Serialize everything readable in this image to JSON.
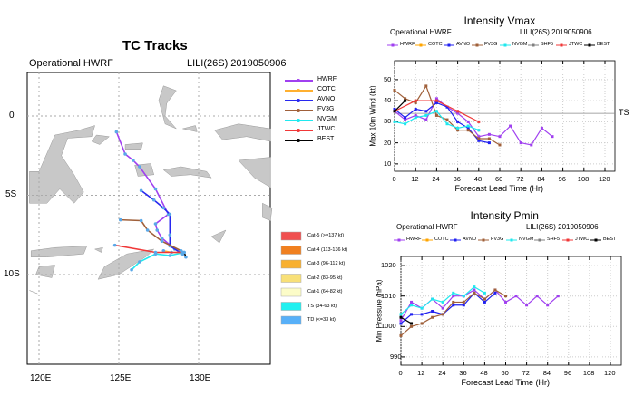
{
  "tracks_panel": {
    "title": "TC Tracks",
    "subtitle_left": "Operational HWRF",
    "subtitle_right": "LILI(26S) 2019050906",
    "lat_ticks": [
      "0",
      "5S",
      "10S"
    ],
    "lon_ticks": [
      "120E",
      "125E",
      "130E"
    ],
    "legend": [
      {
        "name": "HWRF",
        "color": "#a040f0"
      },
      {
        "name": "COTC",
        "color": "#ffb030"
      },
      {
        "name": "AVNO",
        "color": "#2828f0"
      },
      {
        "name": "FV3G",
        "color": "#a0603a"
      },
      {
        "name": "NVGM",
        "color": "#20e8ee"
      },
      {
        "name": "JTWC",
        "color": "#f03838"
      },
      {
        "name": "BEST",
        "color": "#000000"
      }
    ],
    "categories": [
      {
        "label": "Cat-5 (>=137 kt)",
        "color": "#f05050"
      },
      {
        "label": "Cat-4 (113-136 kt)",
        "color": "#f08020"
      },
      {
        "label": "Cat-3 (96-112 kt)",
        "color": "#f8b030"
      },
      {
        "label": "Cat-2 (83-95 kt)",
        "color": "#f8e078"
      },
      {
        "label": "Cat-1 (64-82 kt)",
        "color": "#fcfcc8"
      },
      {
        "label": "TS (34-63 kt)",
        "color": "#20f0f0"
      },
      {
        "label": "TD (<=33 kt)",
        "color": "#58b0f8"
      }
    ],
    "tracks": [
      {
        "name": "HWRF",
        "points": [
          [
            129.0,
            -8.7
          ],
          [
            128.5,
            -8.4
          ],
          [
            127.7,
            -7.7
          ],
          [
            127.4,
            -7.2
          ],
          [
            127.3,
            -6.8
          ],
          [
            128.1,
            -6.2
          ],
          [
            127.3,
            -4.6
          ],
          [
            126.3,
            -3.2
          ],
          [
            125.9,
            -2.8
          ],
          [
            125.4,
            -2.4
          ],
          [
            124.85,
            -1.0
          ]
        ]
      },
      {
        "name": "AVNO",
        "points": [
          [
            129.0,
            -8.7
          ],
          [
            128.2,
            -8.2
          ],
          [
            128.2,
            -7.5
          ],
          [
            128.2,
            -6.2
          ],
          [
            127.8,
            -5.8
          ],
          [
            127.2,
            -5.3
          ],
          [
            126.4,
            -4.7
          ]
        ]
      },
      {
        "name": "FV3G",
        "points": [
          [
            128.9,
            -8.5
          ],
          [
            127.7,
            -7.9
          ],
          [
            126.8,
            -7.2
          ],
          [
            126.4,
            -6.6
          ],
          [
            125.1,
            -6.55
          ]
        ]
      },
      {
        "name": "NVGM",
        "points": [
          [
            129.1,
            -8.6
          ],
          [
            128.2,
            -8.8
          ],
          [
            127.3,
            -8.7
          ],
          [
            126.3,
            -9.2
          ],
          [
            125.8,
            -9.7
          ]
        ]
      },
      {
        "name": "COTC",
        "points": [
          [
            129.0,
            -8.6
          ],
          [
            128.3,
            -8.6
          ],
          [
            127.8,
            -8.5
          ]
        ]
      },
      {
        "name": "JTWC",
        "points": [
          [
            129.0,
            -8.6
          ],
          [
            127.3,
            -8.6
          ],
          [
            124.75,
            -8.15
          ]
        ]
      },
      {
        "name": "BEST",
        "points": [
          [
            129.2,
            -8.9
          ],
          [
            129.1,
            -8.6
          ]
        ]
      }
    ]
  },
  "chart_data": [
    {
      "type": "line",
      "title": "Intensity Vmax",
      "subtitle_left": "Operational HWRF",
      "subtitle_right": "LILI(26S) 2019050906",
      "xlabel": "Forecast Lead Time (Hr)",
      "ylabel": "Max 10m Wind (kt)",
      "xlim": [
        0,
        124
      ],
      "ylim": [
        6.5,
        59
      ],
      "xticks": [
        0,
        12,
        24,
        36,
        48,
        60,
        72,
        84,
        96,
        108,
        120
      ],
      "yticks": [
        10,
        20,
        30,
        40,
        50
      ],
      "reference_line": {
        "value": 34,
        "label": "TS"
      },
      "grid": true,
      "legend": "top",
      "series": [
        {
          "name": "HWRF",
          "color": "#a040f0",
          "x": [
            0,
            6,
            12,
            18,
            24,
            30,
            36,
            42,
            48,
            54,
            60,
            66,
            72,
            78,
            84,
            90
          ],
          "y": [
            35,
            31,
            33,
            31,
            41,
            37,
            34,
            30,
            23,
            24,
            23,
            28,
            20,
            19,
            27,
            23
          ]
        },
        {
          "name": "COTC",
          "color": "#ffa500",
          "x": [],
          "y": []
        },
        {
          "name": "AVNO",
          "color": "#2020f0",
          "x": [
            0,
            6,
            12,
            18,
            24,
            30,
            36,
            42,
            48,
            54
          ],
          "y": [
            36,
            32,
            36,
            35,
            39,
            37,
            30,
            27,
            21,
            20
          ]
        },
        {
          "name": "FV3G",
          "color": "#a0603a",
          "x": [
            0,
            6,
            12,
            18,
            24,
            30,
            36,
            42,
            48,
            54,
            60
          ],
          "y": [
            45,
            41,
            39,
            47,
            33,
            31,
            26,
            26,
            22,
            22,
            19
          ]
        },
        {
          "name": "NVGM",
          "color": "#20e8ee",
          "x": [
            0,
            6,
            12,
            18,
            24,
            30,
            36,
            42,
            48
          ],
          "y": [
            30,
            29,
            32,
            33,
            35,
            29,
            27,
            28,
            26
          ]
        },
        {
          "name": "SHF5",
          "color": "#808080",
          "x": [],
          "y": []
        },
        {
          "name": "JTWC",
          "color": "#f03838",
          "x": [
            0,
            12,
            24,
            36,
            48
          ],
          "y": [
            35,
            40,
            40,
            35,
            30
          ]
        },
        {
          "name": "BEST",
          "color": "#000000",
          "x": [
            0,
            6
          ],
          "y": [
            35,
            40
          ]
        }
      ]
    },
    {
      "type": "line",
      "title": "Intensity Pmin",
      "subtitle_left": "Operational HWRF",
      "subtitle_right": "LILI(26S) 2019050906",
      "xlabel": "Forecast Lead Time (Hr)",
      "ylabel": "Min Pressure (hPa)",
      "xlim": [
        0,
        124
      ],
      "ylim": [
        987.3,
        1023
      ],
      "xticks": [
        0,
        12,
        24,
        36,
        48,
        60,
        72,
        84,
        96,
        108,
        120
      ],
      "yticks": [
        990,
        1000,
        1010,
        1020
      ],
      "grid": true,
      "legend": "top",
      "series": [
        {
          "name": "HWRF",
          "color": "#a040f0",
          "x": [
            0,
            6,
            12,
            18,
            24,
            30,
            36,
            42,
            48,
            54,
            60,
            66,
            72,
            78,
            84,
            90
          ],
          "y": [
            1002,
            1008,
            1006,
            1009,
            1006,
            1010,
            1010,
            1012,
            1009,
            1012,
            1008,
            1010,
            1007,
            1010,
            1007,
            1010
          ]
        },
        {
          "name": "COTC",
          "color": "#ffa500",
          "x": [],
          "y": []
        },
        {
          "name": "AVNO",
          "color": "#2020f0",
          "x": [
            0,
            6,
            12,
            18,
            24,
            30,
            36,
            42,
            48,
            54
          ],
          "y": [
            1001,
            1004,
            1004,
            1005,
            1004,
            1007,
            1007,
            1011,
            1008,
            1011
          ]
        },
        {
          "name": "FV3G",
          "color": "#a0603a",
          "x": [
            0,
            6,
            12,
            18,
            24,
            30,
            36,
            42,
            48,
            54,
            60
          ],
          "y": [
            997,
            1000,
            1001,
            1003,
            1004,
            1008,
            1008,
            1011,
            1009,
            1012,
            1010
          ]
        },
        {
          "name": "NVGM",
          "color": "#20e8ee",
          "x": [
            0,
            6,
            12,
            18,
            24,
            30,
            36,
            42,
            48
          ],
          "y": [
            1004,
            1007,
            1006,
            1009,
            1008,
            1011,
            1010,
            1013,
            1011
          ]
        },
        {
          "name": "SHF5",
          "color": "#808080",
          "x": [],
          "y": []
        },
        {
          "name": "JTWC",
          "color": "#f03838",
          "x": [],
          "y": []
        },
        {
          "name": "BEST",
          "color": "#000000",
          "x": [
            0,
            6
          ],
          "y": [
            1003,
            1001
          ]
        }
      ]
    }
  ]
}
